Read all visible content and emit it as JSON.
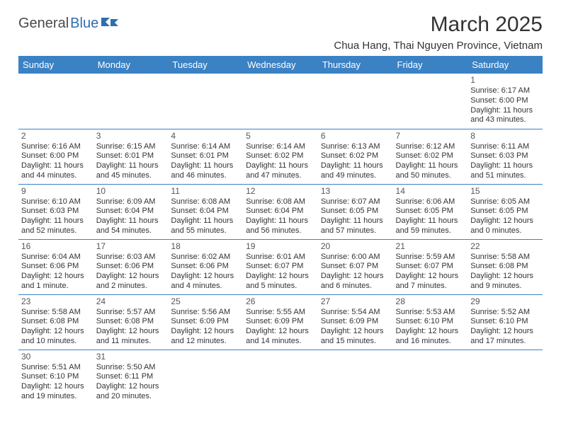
{
  "logo": {
    "part1": "General",
    "part2": "Blue"
  },
  "title": "March 2025",
  "location": "Chua Hang, Thai Nguyen Province, Vietnam",
  "colors": {
    "header_bg": "#3b82c4",
    "header_text": "#ffffff",
    "row_border": "#3b82c4",
    "logo_gray": "#4a4a4a",
    "logo_blue": "#2f6fae",
    "text": "#333333"
  },
  "weekdays": [
    "Sunday",
    "Monday",
    "Tuesday",
    "Wednesday",
    "Thursday",
    "Friday",
    "Saturday"
  ],
  "first_weekday_index": 6,
  "days": [
    {
      "n": 1,
      "sunrise": "6:17 AM",
      "sunset": "6:00 PM",
      "daylight": "11 hours and 43 minutes."
    },
    {
      "n": 2,
      "sunrise": "6:16 AM",
      "sunset": "6:00 PM",
      "daylight": "11 hours and 44 minutes."
    },
    {
      "n": 3,
      "sunrise": "6:15 AM",
      "sunset": "6:01 PM",
      "daylight": "11 hours and 45 minutes."
    },
    {
      "n": 4,
      "sunrise": "6:14 AM",
      "sunset": "6:01 PM",
      "daylight": "11 hours and 46 minutes."
    },
    {
      "n": 5,
      "sunrise": "6:14 AM",
      "sunset": "6:02 PM",
      "daylight": "11 hours and 47 minutes."
    },
    {
      "n": 6,
      "sunrise": "6:13 AM",
      "sunset": "6:02 PM",
      "daylight": "11 hours and 49 minutes."
    },
    {
      "n": 7,
      "sunrise": "6:12 AM",
      "sunset": "6:02 PM",
      "daylight": "11 hours and 50 minutes."
    },
    {
      "n": 8,
      "sunrise": "6:11 AM",
      "sunset": "6:03 PM",
      "daylight": "11 hours and 51 minutes."
    },
    {
      "n": 9,
      "sunrise": "6:10 AM",
      "sunset": "6:03 PM",
      "daylight": "11 hours and 52 minutes."
    },
    {
      "n": 10,
      "sunrise": "6:09 AM",
      "sunset": "6:04 PM",
      "daylight": "11 hours and 54 minutes."
    },
    {
      "n": 11,
      "sunrise": "6:08 AM",
      "sunset": "6:04 PM",
      "daylight": "11 hours and 55 minutes."
    },
    {
      "n": 12,
      "sunrise": "6:08 AM",
      "sunset": "6:04 PM",
      "daylight": "11 hours and 56 minutes."
    },
    {
      "n": 13,
      "sunrise": "6:07 AM",
      "sunset": "6:05 PM",
      "daylight": "11 hours and 57 minutes."
    },
    {
      "n": 14,
      "sunrise": "6:06 AM",
      "sunset": "6:05 PM",
      "daylight": "11 hours and 59 minutes."
    },
    {
      "n": 15,
      "sunrise": "6:05 AM",
      "sunset": "6:05 PM",
      "daylight": "12 hours and 0 minutes."
    },
    {
      "n": 16,
      "sunrise": "6:04 AM",
      "sunset": "6:06 PM",
      "daylight": "12 hours and 1 minute."
    },
    {
      "n": 17,
      "sunrise": "6:03 AM",
      "sunset": "6:06 PM",
      "daylight": "12 hours and 2 minutes."
    },
    {
      "n": 18,
      "sunrise": "6:02 AM",
      "sunset": "6:06 PM",
      "daylight": "12 hours and 4 minutes."
    },
    {
      "n": 19,
      "sunrise": "6:01 AM",
      "sunset": "6:07 PM",
      "daylight": "12 hours and 5 minutes."
    },
    {
      "n": 20,
      "sunrise": "6:00 AM",
      "sunset": "6:07 PM",
      "daylight": "12 hours and 6 minutes."
    },
    {
      "n": 21,
      "sunrise": "5:59 AM",
      "sunset": "6:07 PM",
      "daylight": "12 hours and 7 minutes."
    },
    {
      "n": 22,
      "sunrise": "5:58 AM",
      "sunset": "6:08 PM",
      "daylight": "12 hours and 9 minutes."
    },
    {
      "n": 23,
      "sunrise": "5:58 AM",
      "sunset": "6:08 PM",
      "daylight": "12 hours and 10 minutes."
    },
    {
      "n": 24,
      "sunrise": "5:57 AM",
      "sunset": "6:08 PM",
      "daylight": "12 hours and 11 minutes."
    },
    {
      "n": 25,
      "sunrise": "5:56 AM",
      "sunset": "6:09 PM",
      "daylight": "12 hours and 12 minutes."
    },
    {
      "n": 26,
      "sunrise": "5:55 AM",
      "sunset": "6:09 PM",
      "daylight": "12 hours and 14 minutes."
    },
    {
      "n": 27,
      "sunrise": "5:54 AM",
      "sunset": "6:09 PM",
      "daylight": "12 hours and 15 minutes."
    },
    {
      "n": 28,
      "sunrise": "5:53 AM",
      "sunset": "6:10 PM",
      "daylight": "12 hours and 16 minutes."
    },
    {
      "n": 29,
      "sunrise": "5:52 AM",
      "sunset": "6:10 PM",
      "daylight": "12 hours and 17 minutes."
    },
    {
      "n": 30,
      "sunrise": "5:51 AM",
      "sunset": "6:10 PM",
      "daylight": "12 hours and 19 minutes."
    },
    {
      "n": 31,
      "sunrise": "5:50 AM",
      "sunset": "6:11 PM",
      "daylight": "12 hours and 20 minutes."
    }
  ],
  "labels": {
    "sunrise": "Sunrise:",
    "sunset": "Sunset:",
    "daylight": "Daylight:"
  }
}
